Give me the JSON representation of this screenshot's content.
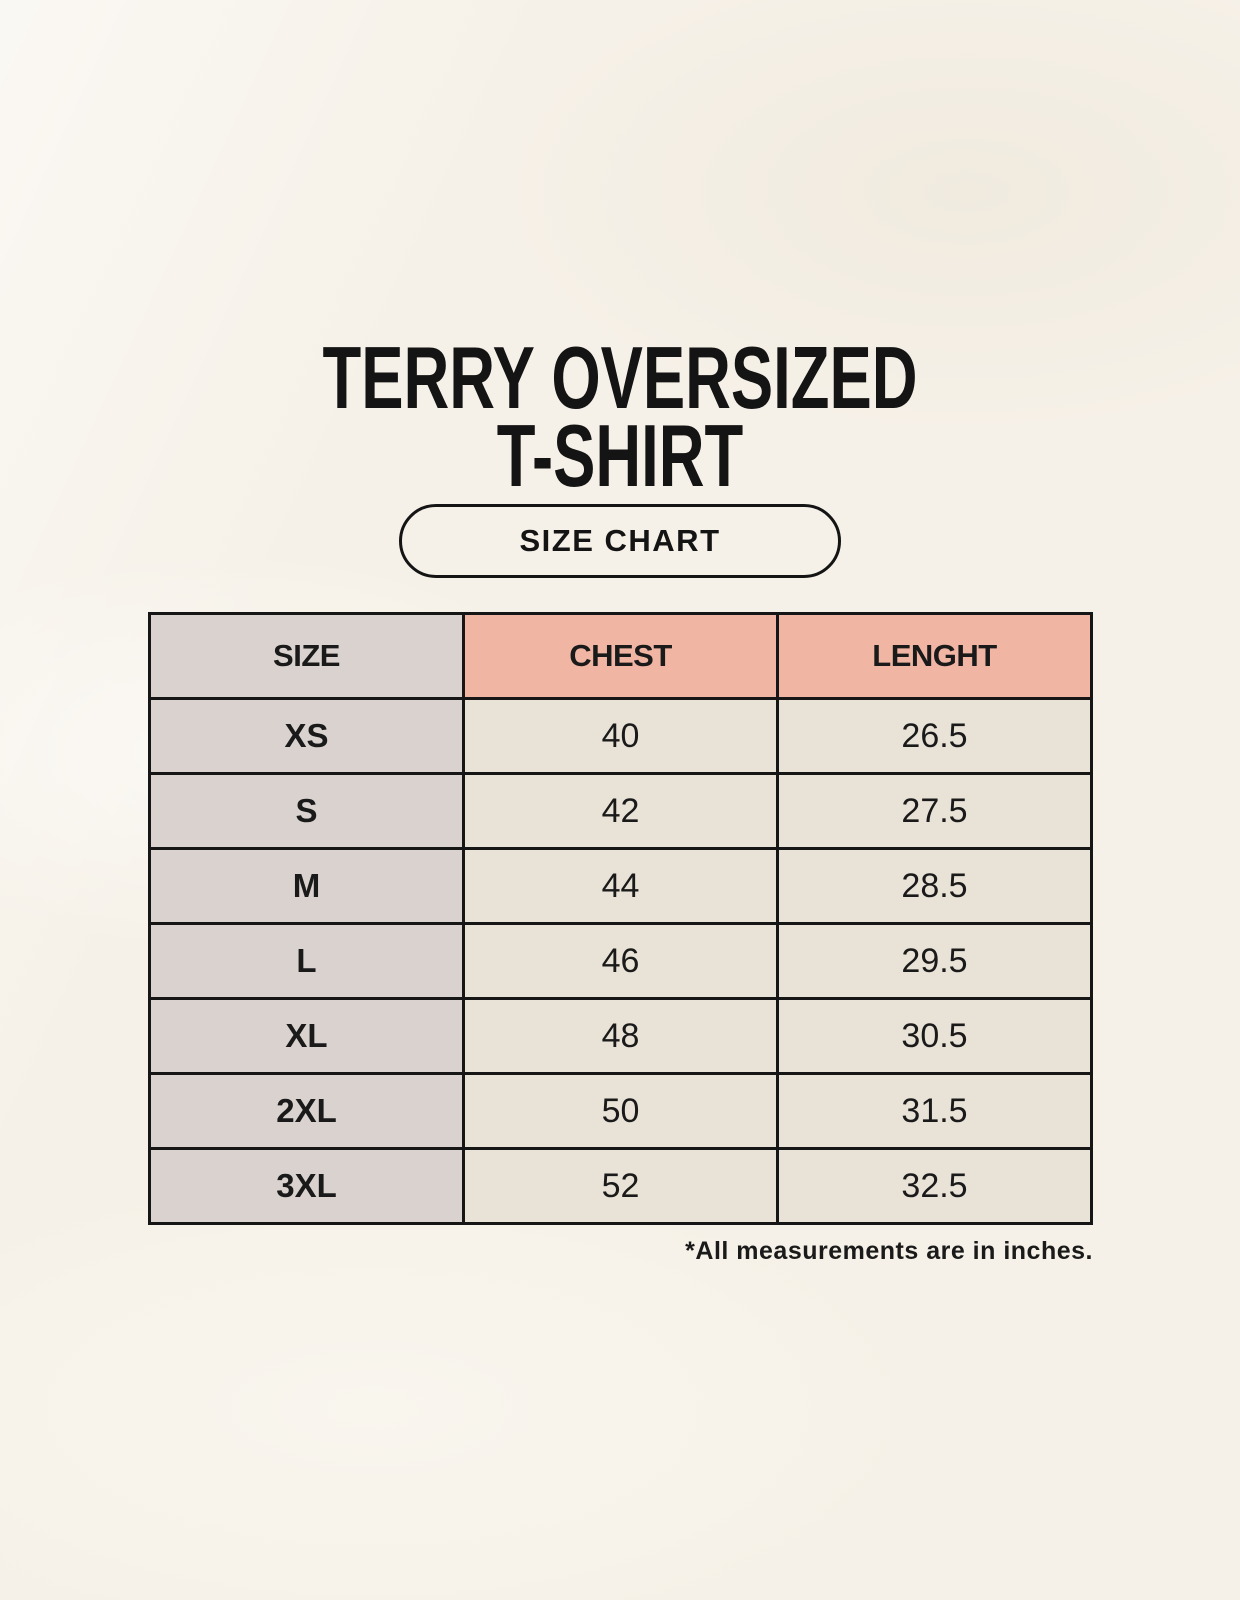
{
  "header": {
    "title_line1": "TERRY OVERSIZED",
    "title_line2": "T-SHIRT",
    "badge_label": "SIZE CHART"
  },
  "chart_data": {
    "type": "table",
    "title": "TERRY OVERSIZED T-SHIRT",
    "subtitle": "SIZE CHART",
    "columns": [
      "SIZE",
      "CHEST",
      "LENGHT"
    ],
    "rows": [
      [
        "XS",
        "40",
        "26.5"
      ],
      [
        "S",
        "42",
        "27.5"
      ],
      [
        "M",
        "44",
        "28.5"
      ],
      [
        "L",
        "46",
        "29.5"
      ],
      [
        "XL",
        "48",
        "30.5"
      ],
      [
        "2XL",
        "50",
        "31.5"
      ],
      [
        "3XL",
        "52",
        "32.5"
      ]
    ],
    "units": "inches",
    "note": "*All measurements are in inches."
  },
  "colors": {
    "bg": "#f6f1e8",
    "ink": "#1a1a1a",
    "border": "#161616",
    "accent": "#f0b5a3",
    "col_size_bg": "#d9d2ce",
    "col_value_bg": "#e9e2d6"
  }
}
